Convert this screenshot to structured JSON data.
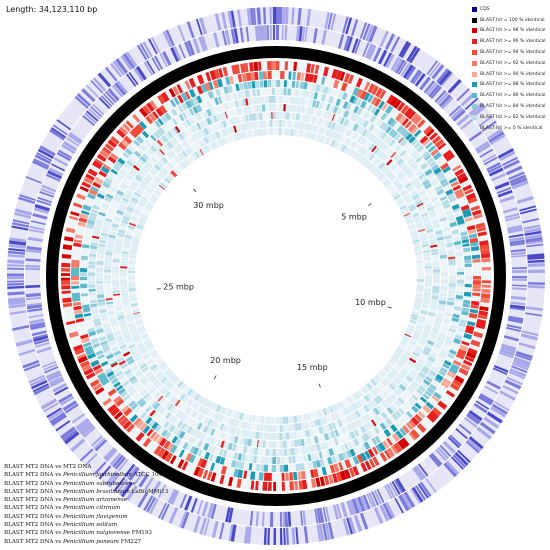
{
  "length_label": "Length: 34,123,110 bp",
  "legend": [
    {
      "label": "CDS",
      "color": "#00008b"
    },
    {
      "label": "BLAST hit = 100 % identical",
      "color": "#000000"
    },
    {
      "label": "BLAST hit >= 98 % identical",
      "color": "#d40000"
    },
    {
      "label": "BLAST hit >= 96 % identical",
      "color": "#e81e1e"
    },
    {
      "label": "BLAST hit >= 94 % identical",
      "color": "#f04a3a"
    },
    {
      "label": "BLAST hit >= 92 % identical",
      "color": "#f57a6a"
    },
    {
      "label": "BLAST hit >= 90 % identical",
      "color": "#f9a898"
    },
    {
      "label": "BLAST hit >= 88 % identical",
      "color": "#1f9bb5"
    },
    {
      "label": "BLAST hit >= 86 % identical",
      "color": "#5fb8cc"
    },
    {
      "label": "BLAST hit >= 84 % identical",
      "color": "#8ecbdb"
    },
    {
      "label": "BLAST hit >= 82 % identical",
      "color": "#b8dde8"
    },
    {
      "label": "BLAST hit >= 0 % identical",
      "color": "#dcedf3"
    }
  ],
  "tracks": [
    {
      "prefix": "BLAST MT2 DNA vs ",
      "species": "",
      "suffix": "MT2 DNA"
    },
    {
      "prefix": "BLAST MT2 DNA vs ",
      "species": "Penicillium janthinellum",
      "suffix": " ATCC 10455"
    },
    {
      "prefix": "BLAST MT2 DNA vs ",
      "species": "Penicillium subrubescens",
      "suffix": ""
    },
    {
      "prefix": "BLAST MT2 DNA vs ",
      "species": "Penicillium brasilianum",
      "suffix": " LaBioMMi13"
    },
    {
      "prefix": "BLAST MT2 DNA vs ",
      "species": "Penicillium arizonense",
      "suffix": ""
    },
    {
      "prefix": "BLAST MT2 DNA vs ",
      "species": "Penicillium citrinum",
      "suffix": ""
    },
    {
      "prefix": "BLAST MT2 DNA vs ",
      "species": "Penicillium flavigenum",
      "suffix": ""
    },
    {
      "prefix": "BLAST MT2 DNA vs ",
      "species": "Penicillium solitum",
      "suffix": ""
    },
    {
      "prefix": "BLAST MT2 DNA vs ",
      "species": "Penicillium nalgiovense",
      "suffix": " FM193"
    },
    {
      "prefix": "BLAST MT2 DNA vs ",
      "species": "Penicillium paneum",
      "suffix": " FM227"
    }
  ],
  "mbp_ticks": [
    {
      "label": "5 mbp",
      "mbp": 5
    },
    {
      "label": "10 mbp",
      "mbp": 10
    },
    {
      "label": "15 mbp",
      "mbp": 15
    },
    {
      "label": "20 mbp",
      "mbp": 20
    },
    {
      "label": "25 mbp",
      "mbp": 25
    },
    {
      "label": "30 mbp",
      "mbp": 30
    }
  ],
  "genome_length_bp": 34123110
}
